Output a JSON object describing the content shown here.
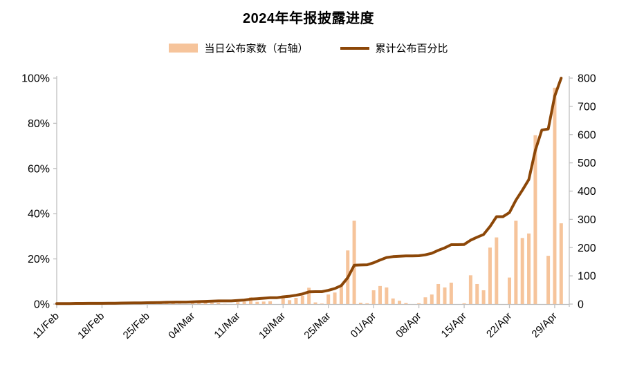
{
  "chart_data": {
    "type": "combo-bar-line",
    "title": "2024年年报披露进度",
    "legend_position": "top",
    "grid": false,
    "x": [
      "11/Feb",
      "12/Feb",
      "13/Feb",
      "14/Feb",
      "15/Feb",
      "16/Feb",
      "17/Feb",
      "18/Feb",
      "19/Feb",
      "20/Feb",
      "21/Feb",
      "22/Feb",
      "23/Feb",
      "24/Feb",
      "25/Feb",
      "26/Feb",
      "27/Feb",
      "28/Feb",
      "01/Mar",
      "02/Mar",
      "03/Mar",
      "04/Mar",
      "05/Mar",
      "06/Mar",
      "07/Mar",
      "08/Mar",
      "09/Mar",
      "10/Mar",
      "11/Mar",
      "12/Mar",
      "13/Mar",
      "14/Mar",
      "15/Mar",
      "16/Mar",
      "17/Mar",
      "18/Mar",
      "19/Mar",
      "20/Mar",
      "21/Mar",
      "22/Mar",
      "23/Mar",
      "24/Mar",
      "25/Mar",
      "26/Mar",
      "27/Mar",
      "28/Mar",
      "29/Mar",
      "30/Mar",
      "31/Mar",
      "01/Apr",
      "02/Apr",
      "03/Apr",
      "04/Apr",
      "05/Apr",
      "06/Apr",
      "07/Apr",
      "08/Apr",
      "09/Apr",
      "10/Apr",
      "11/Apr",
      "12/Apr",
      "13/Apr",
      "14/Apr",
      "15/Apr",
      "16/Apr",
      "17/Apr",
      "18/Apr",
      "19/Apr",
      "20/Apr",
      "21/Apr",
      "22/Apr",
      "23/Apr",
      "24/Apr",
      "25/Apr",
      "26/Apr",
      "27/Apr",
      "28/Apr",
      "29/Apr",
      "30/Apr"
    ],
    "series": [
      {
        "name": "当日公布家数（右轴）",
        "type": "bar",
        "axis": "right",
        "color": "#F6C49B",
        "values": [
          2,
          1,
          1,
          1,
          1,
          1,
          0,
          0,
          1,
          2,
          2,
          2,
          2,
          0,
          0,
          2,
          3,
          6,
          3,
          1,
          0,
          4,
          4,
          6,
          5,
          5,
          1,
          0,
          7,
          9,
          24,
          8,
          9,
          10,
          0,
          22,
          14,
          22,
          30,
          58,
          6,
          2,
          34,
          41,
          67,
          190,
          295,
          5,
          3,
          49,
          64,
          59,
          20,
          12,
          4,
          0,
          3,
          24,
          34,
          71,
          59,
          76,
          0,
          3,
          102,
          71,
          49,
          200,
          236,
          0,
          94,
          295,
          234,
          250,
          598,
          0,
          171,
          766,
          286
        ]
      },
      {
        "name": "累计公布百分比",
        "type": "line",
        "axis": "left",
        "color": "#8C4708",
        "values": [
          0.2,
          0.2,
          0.25,
          0.3,
          0.3,
          0.35,
          0.35,
          0.35,
          0.4,
          0.4,
          0.45,
          0.5,
          0.55,
          0.55,
          0.6,
          0.65,
          0.7,
          0.8,
          0.85,
          0.9,
          0.9,
          1.0,
          1.1,
          1.2,
          1.3,
          1.4,
          1.4,
          1.4,
          1.6,
          1.8,
          2.2,
          2.4,
          2.6,
          2.8,
          2.8,
          3.2,
          3.5,
          3.9,
          4.5,
          5.4,
          5.5,
          5.5,
          6.1,
          6.9,
          8.2,
          11.7,
          17.2,
          17.3,
          17.4,
          18.3,
          19.5,
          20.6,
          21.0,
          21.2,
          21.3,
          21.3,
          21.4,
          21.8,
          22.5,
          23.8,
          24.9,
          26.3,
          26.3,
          26.4,
          28.3,
          29.6,
          30.8,
          34.3,
          38.7,
          38.7,
          40.5,
          46.0,
          50.4,
          55.1,
          68.0,
          77.0,
          77.5,
          92.0,
          100.0
        ]
      }
    ],
    "left_axis": {
      "min": 0,
      "max": 100,
      "tick_labels": [
        "0%",
        "20%",
        "40%",
        "60%",
        "80%",
        "100%"
      ],
      "tick_values": [
        0,
        20,
        40,
        60,
        80,
        100
      ]
    },
    "right_axis": {
      "min": 0,
      "max": 800,
      "tick_labels": [
        "0",
        "100",
        "200",
        "300",
        "400",
        "500",
        "600",
        "700",
        "800"
      ],
      "tick_values": [
        0,
        100,
        200,
        300,
        400,
        500,
        600,
        700,
        800
      ]
    },
    "x_tick_indices": [
      0,
      7,
      14,
      21,
      28,
      35,
      42,
      49,
      56,
      63,
      70,
      77
    ],
    "x_tick_labels": [
      "11/Feb",
      "18/Feb",
      "25/Feb",
      "04/Mar",
      "11/Mar",
      "18/Mar",
      "25/Mar",
      "01/Apr",
      "08/Apr",
      "15/Apr",
      "22/Apr",
      "29/Apr"
    ],
    "axis_color": "#BFBFBF",
    "label_color": "#000000"
  }
}
